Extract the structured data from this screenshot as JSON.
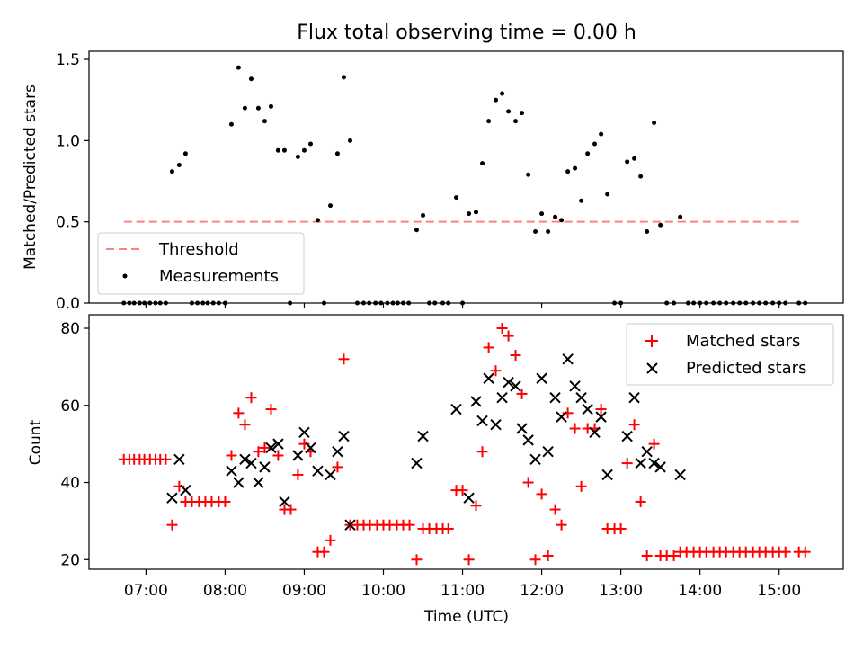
{
  "figure": {
    "title": "Flux total observing time = 0.00 h",
    "xlabel": "Time (UTC)",
    "x_ticks": [
      "07:00",
      "08:00",
      "09:00",
      "10:00",
      "11:00",
      "12:00",
      "13:00",
      "14:00",
      "15:00"
    ],
    "x_range_hours": [
      6.28,
      15.81
    ]
  },
  "chart_data": [
    {
      "type": "scatter",
      "title": "Flux total observing time = 0.00 h",
      "xlabel": "",
      "ylabel": "Matched/Predicted stars",
      "ylim": [
        0,
        1.55
      ],
      "y_ticks": [
        "0.0",
        "0.5",
        "1.0",
        "1.5"
      ],
      "legend_position": "lower-left",
      "threshold": {
        "name": "Threshold",
        "value": 0.5,
        "x": [
          6.72,
          15.3
        ],
        "color": "#ff8080",
        "style": "dashed"
      },
      "series": [
        {
          "name": "Measurements",
          "color": "#000000",
          "marker": "dot",
          "points": [
            [
              6.72,
              0
            ],
            [
              6.79,
              0
            ],
            [
              6.85,
              0
            ],
            [
              6.92,
              0
            ],
            [
              6.98,
              0
            ],
            [
              7.05,
              0
            ],
            [
              7.12,
              0
            ],
            [
              7.18,
              0
            ],
            [
              7.25,
              0
            ],
            [
              7.33,
              0.81
            ],
            [
              7.42,
              0.85
            ],
            [
              7.5,
              0.92
            ],
            [
              7.58,
              0
            ],
            [
              7.65,
              0
            ],
            [
              7.72,
              0
            ],
            [
              7.78,
              0
            ],
            [
              7.85,
              0
            ],
            [
              7.92,
              0
            ],
            [
              8.0,
              0
            ],
            [
              8.08,
              1.1
            ],
            [
              8.17,
              1.45
            ],
            [
              8.25,
              1.2
            ],
            [
              8.33,
              1.38
            ],
            [
              8.42,
              1.2
            ],
            [
              8.5,
              1.12
            ],
            [
              8.58,
              1.21
            ],
            [
              8.67,
              0.94
            ],
            [
              8.75,
              0.94
            ],
            [
              8.82,
              0
            ],
            [
              8.92,
              0.9
            ],
            [
              9.0,
              0.94
            ],
            [
              9.08,
              0.98
            ],
            [
              9.17,
              0.51
            ],
            [
              9.25,
              0
            ],
            [
              9.33,
              0.6
            ],
            [
              9.42,
              0.92
            ],
            [
              9.5,
              1.39
            ],
            [
              9.58,
              1.0
            ],
            [
              9.67,
              0
            ],
            [
              9.75,
              0
            ],
            [
              9.82,
              0
            ],
            [
              9.9,
              0
            ],
            [
              9.97,
              0
            ],
            [
              10.05,
              0
            ],
            [
              10.12,
              0
            ],
            [
              10.18,
              0
            ],
            [
              10.25,
              0
            ],
            [
              10.32,
              0
            ],
            [
              10.42,
              0.45
            ],
            [
              10.5,
              0.54
            ],
            [
              10.58,
              0
            ],
            [
              10.65,
              0
            ],
            [
              10.75,
              0
            ],
            [
              10.82,
              0
            ],
            [
              10.92,
              0.65
            ],
            [
              11.0,
              0
            ],
            [
              11.08,
              0.55
            ],
            [
              11.17,
              0.56
            ],
            [
              11.25,
              0.86
            ],
            [
              11.33,
              1.12
            ],
            [
              11.42,
              1.25
            ],
            [
              11.5,
              1.29
            ],
            [
              11.58,
              1.18
            ],
            [
              11.67,
              1.12
            ],
            [
              11.75,
              1.17
            ],
            [
              11.83,
              0.79
            ],
            [
              11.92,
              0.44
            ],
            [
              12.0,
              0.55
            ],
            [
              12.08,
              0.44
            ],
            [
              12.17,
              0.53
            ],
            [
              12.25,
              0.51
            ],
            [
              12.33,
              0.81
            ],
            [
              12.42,
              0.83
            ],
            [
              12.5,
              0.63
            ],
            [
              12.58,
              0.92
            ],
            [
              12.67,
              0.98
            ],
            [
              12.75,
              1.04
            ],
            [
              12.83,
              0.67
            ],
            [
              12.92,
              0
            ],
            [
              13.0,
              0
            ],
            [
              13.08,
              0.87
            ],
            [
              13.17,
              0.89
            ],
            [
              13.25,
              0.78
            ],
            [
              13.33,
              0.44
            ],
            [
              13.42,
              1.11
            ],
            [
              13.5,
              0.48
            ],
            [
              13.58,
              0
            ],
            [
              13.67,
              0
            ],
            [
              13.75,
              0.53
            ],
            [
              13.85,
              0
            ],
            [
              13.92,
              0
            ],
            [
              14.0,
              0
            ],
            [
              14.08,
              0
            ],
            [
              14.17,
              0
            ],
            [
              14.25,
              0
            ],
            [
              14.33,
              0
            ],
            [
              14.42,
              0
            ],
            [
              14.5,
              0
            ],
            [
              14.58,
              0
            ],
            [
              14.67,
              0
            ],
            [
              14.75,
              0
            ],
            [
              14.83,
              0
            ],
            [
              14.92,
              0
            ],
            [
              15.0,
              0
            ],
            [
              15.08,
              0
            ],
            [
              15.25,
              0
            ],
            [
              15.33,
              0
            ]
          ]
        }
      ]
    },
    {
      "type": "scatter",
      "title": "",
      "xlabel": "Time (UTC)",
      "ylabel": "Count",
      "ylim": [
        17.5,
        83.5
      ],
      "y_ticks": [
        "20",
        "40",
        "60",
        "80"
      ],
      "legend_position": "top-right",
      "series": [
        {
          "name": "Matched stars",
          "color": "#ff0000",
          "marker": "plus",
          "points": [
            [
              6.72,
              46
            ],
            [
              6.79,
              46
            ],
            [
              6.85,
              46
            ],
            [
              6.92,
              46
            ],
            [
              6.98,
              46
            ],
            [
              7.05,
              46
            ],
            [
              7.12,
              46
            ],
            [
              7.18,
              46
            ],
            [
              7.25,
              46
            ],
            [
              7.33,
              29
            ],
            [
              7.42,
              39
            ],
            [
              7.5,
              35
            ],
            [
              7.58,
              35
            ],
            [
              7.67,
              35
            ],
            [
              7.75,
              35
            ],
            [
              7.83,
              35
            ],
            [
              7.92,
              35
            ],
            [
              8.0,
              35
            ],
            [
              8.08,
              47
            ],
            [
              8.17,
              58
            ],
            [
              8.25,
              55
            ],
            [
              8.33,
              62
            ],
            [
              8.42,
              48
            ],
            [
              8.5,
              49
            ],
            [
              8.58,
              59
            ],
            [
              8.67,
              47
            ],
            [
              8.75,
              33
            ],
            [
              8.83,
              33
            ],
            [
              8.92,
              42
            ],
            [
              9.0,
              50
            ],
            [
              9.08,
              48
            ],
            [
              9.17,
              22
            ],
            [
              9.25,
              22
            ],
            [
              9.33,
              25
            ],
            [
              9.42,
              44
            ],
            [
              9.5,
              72
            ],
            [
              9.58,
              29
            ],
            [
              9.67,
              29
            ],
            [
              9.75,
              29
            ],
            [
              9.83,
              29
            ],
            [
              9.92,
              29
            ],
            [
              10.0,
              29
            ],
            [
              10.08,
              29
            ],
            [
              10.17,
              29
            ],
            [
              10.25,
              29
            ],
            [
              10.33,
              29
            ],
            [
              10.42,
              20
            ],
            [
              10.5,
              28
            ],
            [
              10.58,
              28
            ],
            [
              10.67,
              28
            ],
            [
              10.75,
              28
            ],
            [
              10.82,
              28
            ],
            [
              10.92,
              38
            ],
            [
              11.0,
              38
            ],
            [
              11.08,
              20
            ],
            [
              11.17,
              34
            ],
            [
              11.25,
              48
            ],
            [
              11.33,
              75
            ],
            [
              11.42,
              69
            ],
            [
              11.5,
              80
            ],
            [
              11.58,
              78
            ],
            [
              11.67,
              73
            ],
            [
              11.75,
              63
            ],
            [
              11.83,
              40
            ],
            [
              11.92,
              20
            ],
            [
              12.0,
              37
            ],
            [
              12.08,
              21
            ],
            [
              12.17,
              33
            ],
            [
              12.25,
              29
            ],
            [
              12.33,
              58
            ],
            [
              12.42,
              54
            ],
            [
              12.5,
              39
            ],
            [
              12.58,
              54
            ],
            [
              12.67,
              54
            ],
            [
              12.75,
              59
            ],
            [
              12.83,
              28
            ],
            [
              12.92,
              28
            ],
            [
              13.0,
              28
            ],
            [
              13.08,
              45
            ],
            [
              13.17,
              55
            ],
            [
              13.25,
              35
            ],
            [
              13.33,
              21
            ],
            [
              13.42,
              50
            ],
            [
              13.5,
              21
            ],
            [
              13.58,
              21
            ],
            [
              13.67,
              21
            ],
            [
              13.75,
              22
            ],
            [
              13.83,
              22
            ],
            [
              13.92,
              22
            ],
            [
              14.0,
              22
            ],
            [
              14.08,
              22
            ],
            [
              14.17,
              22
            ],
            [
              14.25,
              22
            ],
            [
              14.33,
              22
            ],
            [
              14.42,
              22
            ],
            [
              14.5,
              22
            ],
            [
              14.58,
              22
            ],
            [
              14.67,
              22
            ],
            [
              14.75,
              22
            ],
            [
              14.83,
              22
            ],
            [
              14.92,
              22
            ],
            [
              15.0,
              22
            ],
            [
              15.08,
              22
            ],
            [
              15.25,
              22
            ],
            [
              15.33,
              22
            ]
          ]
        },
        {
          "name": "Predicted stars",
          "color": "#000000",
          "marker": "x",
          "points": [
            [
              7.33,
              36
            ],
            [
              7.42,
              46
            ],
            [
              7.5,
              38
            ],
            [
              8.08,
              43
            ],
            [
              8.17,
              40
            ],
            [
              8.25,
              46
            ],
            [
              8.33,
              45
            ],
            [
              8.42,
              40
            ],
            [
              8.5,
              44
            ],
            [
              8.58,
              49
            ],
            [
              8.67,
              50
            ],
            [
              8.75,
              35
            ],
            [
              8.92,
              47
            ],
            [
              9.0,
              53
            ],
            [
              9.08,
              49
            ],
            [
              9.17,
              43
            ],
            [
              9.33,
              42
            ],
            [
              9.42,
              48
            ],
            [
              9.5,
              52
            ],
            [
              9.58,
              29
            ],
            [
              10.42,
              45
            ],
            [
              10.5,
              52
            ],
            [
              10.92,
              59
            ],
            [
              11.08,
              36
            ],
            [
              11.17,
              61
            ],
            [
              11.25,
              56
            ],
            [
              11.33,
              67
            ],
            [
              11.42,
              55
            ],
            [
              11.5,
              62
            ],
            [
              11.58,
              66
            ],
            [
              11.67,
              65
            ],
            [
              11.75,
              54
            ],
            [
              11.83,
              51
            ],
            [
              11.92,
              46
            ],
            [
              12.0,
              67
            ],
            [
              12.08,
              48
            ],
            [
              12.17,
              62
            ],
            [
              12.25,
              57
            ],
            [
              12.33,
              72
            ],
            [
              12.42,
              65
            ],
            [
              12.5,
              62
            ],
            [
              12.58,
              59
            ],
            [
              12.67,
              53
            ],
            [
              12.75,
              57
            ],
            [
              12.83,
              42
            ],
            [
              13.08,
              52
            ],
            [
              13.17,
              62
            ],
            [
              13.25,
              45
            ],
            [
              13.33,
              48
            ],
            [
              13.42,
              45
            ],
            [
              13.5,
              44
            ],
            [
              13.75,
              42
            ]
          ]
        }
      ]
    }
  ]
}
